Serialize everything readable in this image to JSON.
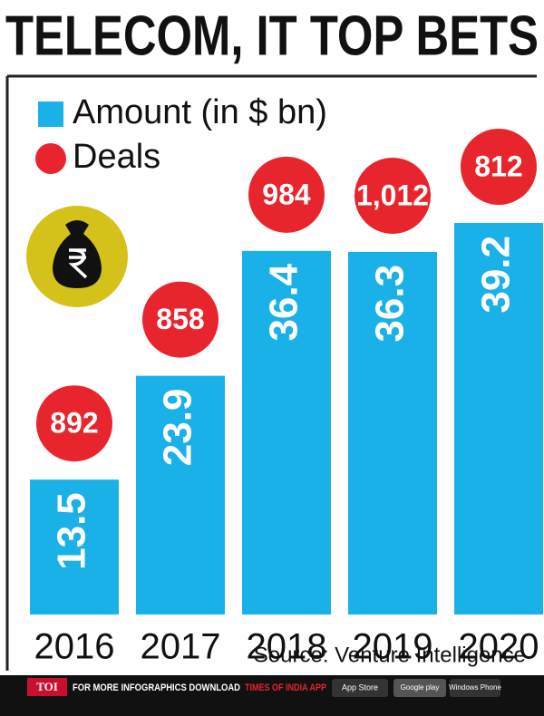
{
  "chart_data": {
    "type": "bar",
    "title": "TELECOM, IT TOP BETS",
    "categories": [
      "2016",
      "2017",
      "2018",
      "2019",
      "2020"
    ],
    "series": [
      {
        "name": "Amount (in $ bn)",
        "color": "#1ab0e8",
        "values": [
          13.5,
          23.9,
          36.4,
          36.3,
          39.2
        ]
      },
      {
        "name": "Deals",
        "color": "#e8242c",
        "values": [
          892,
          858,
          984,
          1012,
          812
        ],
        "value_labels": [
          "892",
          "858",
          "984",
          "1,012",
          "812"
        ]
      }
    ],
    "source": "Source: Venture Intelligence"
  },
  "footer": {
    "brand": "TOI",
    "text": "FOR MORE INFOGRAPHICS DOWNLOAD",
    "app": "TIMES OF INDIA APP",
    "badges": [
      "App Store",
      "Google play",
      "Windows Phone"
    ]
  }
}
